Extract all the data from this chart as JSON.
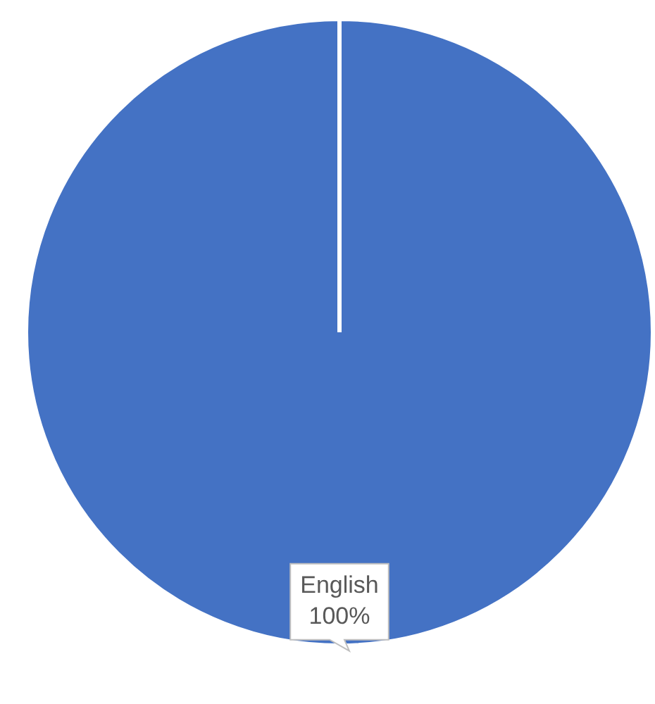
{
  "chart_data": {
    "type": "pie",
    "categories": [
      "English"
    ],
    "values": [
      100
    ],
    "colors": [
      "#4472c4"
    ],
    "value_labels": [
      "100%"
    ],
    "legend": false
  }
}
